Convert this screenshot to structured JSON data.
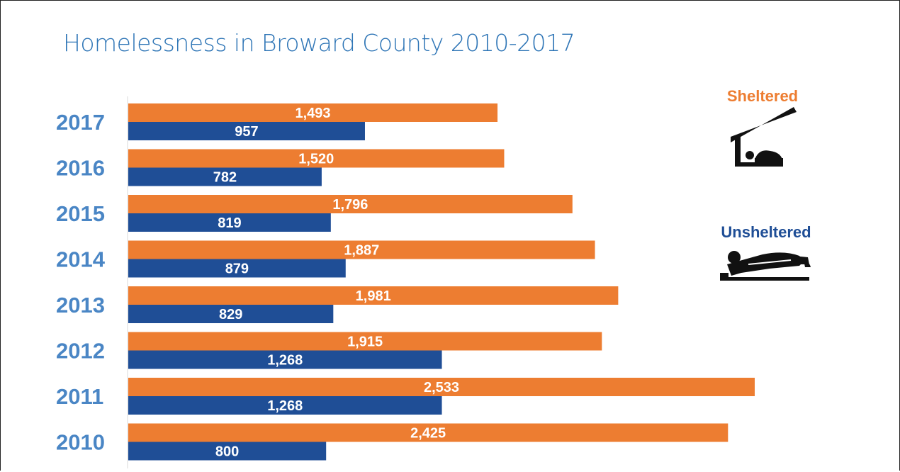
{
  "title": "Homelessness in Broward County 2010-2017",
  "legend": {
    "sheltered": {
      "label": "Sheltered",
      "color": "#ed7d31",
      "icon": "shelter-icon"
    },
    "unsheltered": {
      "label": "Unsheltered",
      "color": "#1f4e96",
      "icon": "person-lying-icon"
    }
  },
  "chart_data": {
    "type": "bar",
    "orientation": "horizontal",
    "title": "Homelessness in Broward County 2010-2017",
    "categories": [
      "2017",
      "2016",
      "2015",
      "2014",
      "2013",
      "2012",
      "2011",
      "2010"
    ],
    "series": [
      {
        "name": "Sheltered",
        "color": "#ed7d31",
        "values": [
          1493,
          1520,
          1796,
          1887,
          1981,
          1915,
          2533,
          2425
        ],
        "labels": [
          "1,493",
          "1,520",
          "1,796",
          "1,887",
          "1,981",
          "1,915",
          "2,533",
          "2,425"
        ]
      },
      {
        "name": "Unsheltered",
        "color": "#1f4e96",
        "values": [
          957,
          782,
          819,
          879,
          829,
          1268,
          1268,
          800
        ],
        "labels": [
          "957",
          "782",
          "819",
          "879",
          "829",
          "1,268",
          "1,268",
          "800"
        ]
      }
    ],
    "xlim": [
      0,
      2533
    ],
    "grid": false,
    "legend_position": "right"
  }
}
